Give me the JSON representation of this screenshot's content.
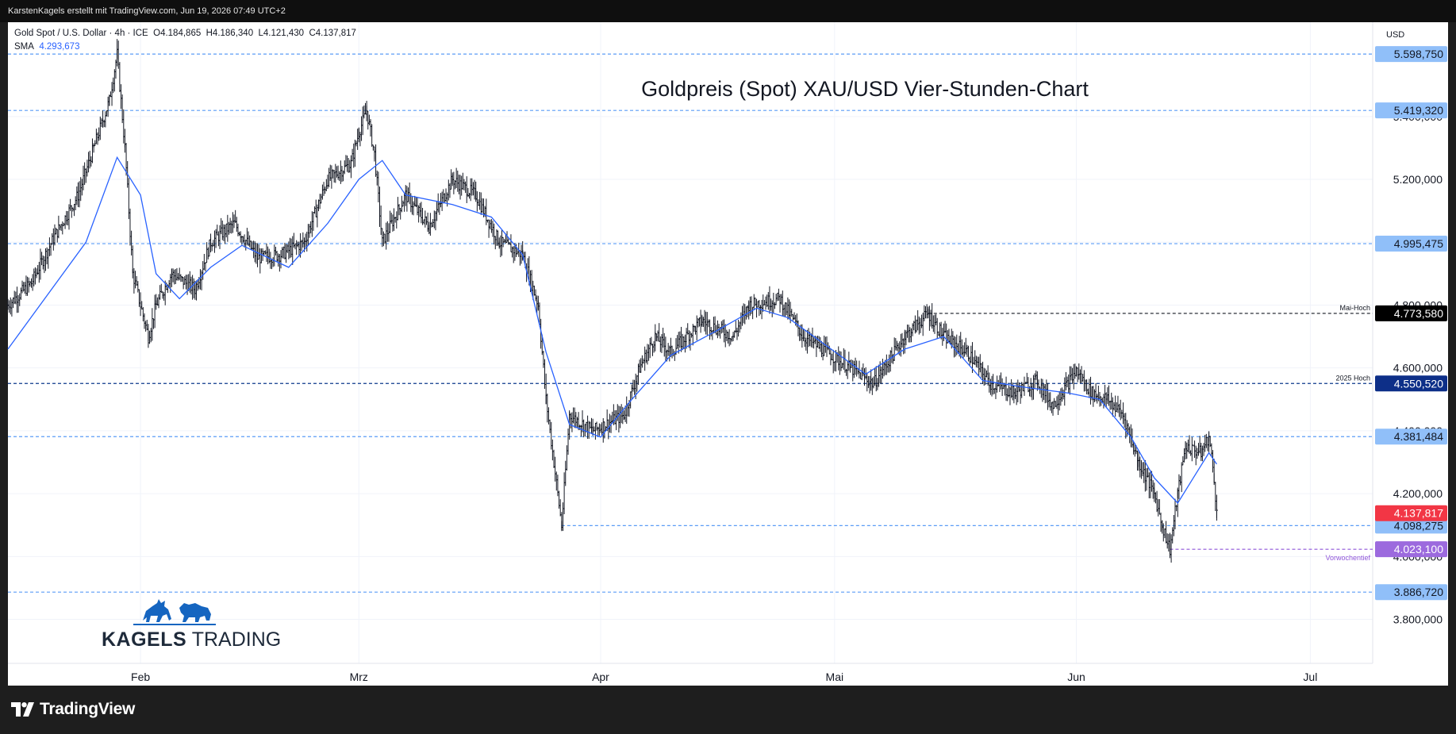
{
  "header": {
    "attribution": "KarstenKagels erstellt mit TradingView.com, Jun 19, 2026 07:49 UTC+2"
  },
  "legend": {
    "symbol_line": "Gold Spot / U.S. Dollar · 4h · ICE",
    "open": "O4.184,865",
    "high": "H4.186,340",
    "low": "L4.121,430",
    "close": "C4.137,817",
    "sma_label": "SMA",
    "sma_value": "4.293,673"
  },
  "currency": "USD",
  "brand": {
    "name_bold": "KAGELS",
    "name_light": "TRADING"
  },
  "footer": {
    "logo_text": "TradingView"
  },
  "chart_data": {
    "type": "candlestick",
    "title": "Goldpreis (Spot) XAU/USD Vier-Stunden-Chart",
    "ylim": [
      3660,
      5700
    ],
    "xlim": [
      "2026-01-15",
      "2026-07-09"
    ],
    "y_ticks": [
      3800,
      4000,
      4200,
      4400,
      4600,
      4800,
      5000,
      5200,
      5400
    ],
    "y_tick_labels": [
      "3.800,000",
      "4.000,000",
      "4.200,000",
      "4.400,000",
      "4.600,000",
      "4.800,000",
      "5.000,000",
      "5.200,000",
      "5.400,000"
    ],
    "x_ticks": [
      {
        "date": "2026-02-01",
        "label": "Feb"
      },
      {
        "date": "2026-03-01",
        "label": "Mrz"
      },
      {
        "date": "2026-04-01",
        "label": "Apr"
      },
      {
        "date": "2026-05-01",
        "label": "Mai"
      },
      {
        "date": "2026-06-01",
        "label": "Jun"
      },
      {
        "date": "2026-07-01",
        "label": "Jul"
      }
    ],
    "grid": true,
    "price_path": [
      {
        "date": "2026-01-15",
        "price": 4800
      },
      {
        "date": "2026-01-18",
        "price": 4870
      },
      {
        "date": "2026-01-21",
        "price": 5020
      },
      {
        "date": "2026-01-24",
        "price": 5150
      },
      {
        "date": "2026-01-26",
        "price": 5300
      },
      {
        "date": "2026-01-28",
        "price": 5450
      },
      {
        "date": "2026-01-29",
        "price": 5598
      },
      {
        "date": "2026-01-30",
        "price": 5300
      },
      {
        "date": "2026-01-31",
        "price": 4900
      },
      {
        "date": "2026-02-02",
        "price": 4700
      },
      {
        "date": "2026-02-03",
        "price": 4800
      },
      {
        "date": "2026-02-05",
        "price": 4900
      },
      {
        "date": "2026-02-08",
        "price": 4850
      },
      {
        "date": "2026-02-10",
        "price": 5000
      },
      {
        "date": "2026-02-13",
        "price": 5060
      },
      {
        "date": "2026-02-16",
        "price": 4950
      },
      {
        "date": "2026-02-19",
        "price": 4960
      },
      {
        "date": "2026-02-22",
        "price": 5000
      },
      {
        "date": "2026-02-25",
        "price": 5200
      },
      {
        "date": "2026-02-28",
        "price": 5250
      },
      {
        "date": "2026-03-01",
        "price": 5350
      },
      {
        "date": "2026-03-02",
        "price": 5419
      },
      {
        "date": "2026-03-03",
        "price": 5280
      },
      {
        "date": "2026-03-04",
        "price": 5000
      },
      {
        "date": "2026-03-07",
        "price": 5150
      },
      {
        "date": "2026-03-10",
        "price": 5050
      },
      {
        "date": "2026-03-13",
        "price": 5200
      },
      {
        "date": "2026-03-16",
        "price": 5150
      },
      {
        "date": "2026-03-19",
        "price": 5000
      },
      {
        "date": "2026-03-22",
        "price": 4960
      },
      {
        "date": "2026-03-24",
        "price": 4800
      },
      {
        "date": "2026-03-25",
        "price": 4500
      },
      {
        "date": "2026-03-26",
        "price": 4300
      },
      {
        "date": "2026-03-27",
        "price": 4098
      },
      {
        "date": "2026-03-28",
        "price": 4450
      },
      {
        "date": "2026-03-31",
        "price": 4400
      },
      {
        "date": "2026-04-04",
        "price": 4450
      },
      {
        "date": "2026-04-06",
        "price": 4600
      },
      {
        "date": "2026-04-08",
        "price": 4700
      },
      {
        "date": "2026-04-10",
        "price": 4650
      },
      {
        "date": "2026-04-14",
        "price": 4750
      },
      {
        "date": "2026-04-18",
        "price": 4700
      },
      {
        "date": "2026-04-20",
        "price": 4800
      },
      {
        "date": "2026-04-24",
        "price": 4820
      },
      {
        "date": "2026-04-27",
        "price": 4700
      },
      {
        "date": "2026-04-30",
        "price": 4650
      },
      {
        "date": "2026-05-03",
        "price": 4600
      },
      {
        "date": "2026-05-06",
        "price": 4550
      },
      {
        "date": "2026-05-10",
        "price": 4700
      },
      {
        "date": "2026-05-13",
        "price": 4773
      },
      {
        "date": "2026-05-15",
        "price": 4700
      },
      {
        "date": "2026-05-18",
        "price": 4650
      },
      {
        "date": "2026-05-21",
        "price": 4550
      },
      {
        "date": "2026-05-24",
        "price": 4520
      },
      {
        "date": "2026-05-27",
        "price": 4560
      },
      {
        "date": "2026-05-29",
        "price": 4480
      },
      {
        "date": "2026-06-01",
        "price": 4590
      },
      {
        "date": "2026-06-03",
        "price": 4520
      },
      {
        "date": "2026-06-05",
        "price": 4500
      },
      {
        "date": "2026-06-07",
        "price": 4450
      },
      {
        "date": "2026-06-09",
        "price": 4300
      },
      {
        "date": "2026-06-11",
        "price": 4200
      },
      {
        "date": "2026-06-12",
        "price": 4100
      },
      {
        "date": "2026-06-13",
        "price": 4023
      },
      {
        "date": "2026-06-14",
        "price": 4200
      },
      {
        "date": "2026-06-15",
        "price": 4350
      },
      {
        "date": "2026-06-17",
        "price": 4330
      },
      {
        "date": "2026-06-18",
        "price": 4381
      },
      {
        "date": "2026-06-18T16:00",
        "price": 4250
      },
      {
        "date": "2026-06-19",
        "price": 4137
      }
    ],
    "sma_path": [
      {
        "date": "2026-01-15",
        "price": 4660
      },
      {
        "date": "2026-01-20",
        "price": 4830
      },
      {
        "date": "2026-01-25",
        "price": 5000
      },
      {
        "date": "2026-01-29",
        "price": 5270
      },
      {
        "date": "2026-02-01",
        "price": 5150
      },
      {
        "date": "2026-02-03",
        "price": 4900
      },
      {
        "date": "2026-02-06",
        "price": 4820
      },
      {
        "date": "2026-02-10",
        "price": 4920
      },
      {
        "date": "2026-02-14",
        "price": 4990
      },
      {
        "date": "2026-02-20",
        "price": 4920
      },
      {
        "date": "2026-02-25",
        "price": 5060
      },
      {
        "date": "2026-03-01",
        "price": 5200
      },
      {
        "date": "2026-03-04",
        "price": 5260
      },
      {
        "date": "2026-03-07",
        "price": 5150
      },
      {
        "date": "2026-03-13",
        "price": 5120
      },
      {
        "date": "2026-03-18",
        "price": 5080
      },
      {
        "date": "2026-03-22",
        "price": 4960
      },
      {
        "date": "2026-03-25",
        "price": 4650
      },
      {
        "date": "2026-03-28",
        "price": 4420
      },
      {
        "date": "2026-04-01",
        "price": 4380
      },
      {
        "date": "2026-04-05",
        "price": 4500
      },
      {
        "date": "2026-04-10",
        "price": 4640
      },
      {
        "date": "2026-04-16",
        "price": 4720
      },
      {
        "date": "2026-04-21",
        "price": 4790
      },
      {
        "date": "2026-04-25",
        "price": 4760
      },
      {
        "date": "2026-04-30",
        "price": 4670
      },
      {
        "date": "2026-05-05",
        "price": 4580
      },
      {
        "date": "2026-05-10",
        "price": 4660
      },
      {
        "date": "2026-05-15",
        "price": 4700
      },
      {
        "date": "2026-05-20",
        "price": 4560
      },
      {
        "date": "2026-05-25",
        "price": 4540
      },
      {
        "date": "2026-05-31",
        "price": 4520
      },
      {
        "date": "2026-06-04",
        "price": 4500
      },
      {
        "date": "2026-06-08",
        "price": 4380
      },
      {
        "date": "2026-06-11",
        "price": 4250
      },
      {
        "date": "2026-06-14",
        "price": 4170
      },
      {
        "date": "2026-06-16",
        "price": 4250
      },
      {
        "date": "2026-06-18",
        "price": 4330
      },
      {
        "date": "2026-06-19",
        "price": 4294
      }
    ],
    "levels": [
      {
        "value": 5598.75,
        "label": "5.598,750",
        "color": "#5b9cf6",
        "style": "dashed",
        "badge_bg": "#90bff9",
        "badge_fg": "#131722"
      },
      {
        "value": 5419.32,
        "label": "5.419,320",
        "color": "#5b9cf6",
        "style": "dashed",
        "badge_bg": "#90bff9",
        "badge_fg": "#131722"
      },
      {
        "value": 4995.475,
        "label": "4.995,475",
        "color": "#5b9cf6",
        "style": "dashed",
        "badge_bg": "#90bff9",
        "badge_fg": "#131722"
      },
      {
        "value": 4773.58,
        "label": "4.773,580",
        "color": "#131722",
        "style": "dashed",
        "badge_bg": "#000000",
        "badge_fg": "#ffffff",
        "note": "Mai-Hoch",
        "from_date": "2026-05-13"
      },
      {
        "value": 4550.52,
        "label": "4.550,520",
        "color": "#0d3a8c",
        "style": "dashed",
        "badge_bg": "#0d2f88",
        "badge_fg": "#ffffff",
        "note": "2025 Hoch"
      },
      {
        "value": 4381.484,
        "label": "4.381,484",
        "color": "#5b9cf6",
        "style": "dashed",
        "badge_bg": "#90bff9",
        "badge_fg": "#131722"
      },
      {
        "value": 4098.275,
        "label": "4.098,275",
        "color": "#5b9cf6",
        "style": "dashed",
        "badge_bg": "#90bff9",
        "badge_fg": "#131722",
        "from_date": "2026-03-27"
      },
      {
        "value": 4023.1,
        "label": "4.023,100",
        "color": "#8e55d9",
        "style": "dashed",
        "badge_bg": "#9c6ade",
        "badge_fg": "#ffffff",
        "note": "Vorwochentief",
        "from_date": "2026-06-13"
      },
      {
        "value": 3886.72,
        "label": "3.886,720",
        "color": "#5b9cf6",
        "style": "dashed",
        "badge_bg": "#90bff9",
        "badge_fg": "#131722"
      }
    ],
    "last_price": {
      "value": 4137.817,
      "label": "4.137,817",
      "badge_bg": "#f23645",
      "badge_fg": "#ffffff"
    },
    "colors": {
      "candle": "#131722",
      "sma": "#2962ff"
    }
  }
}
